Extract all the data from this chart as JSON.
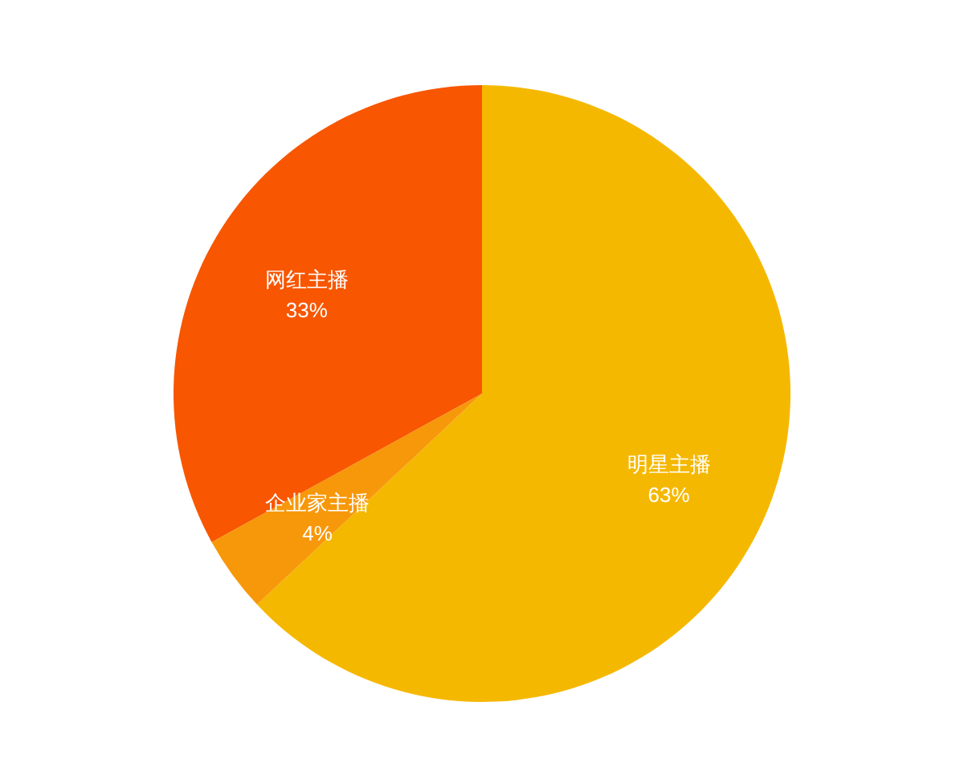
{
  "chart_data": {
    "type": "pie",
    "categories": [
      "明星主播",
      "企业家主播",
      "网红主播"
    ],
    "values": [
      63,
      4,
      33
    ],
    "value_labels": [
      "63%",
      "4%",
      "33%"
    ],
    "colors": [
      "#f5b800",
      "#f7980a",
      "#f85600"
    ]
  }
}
